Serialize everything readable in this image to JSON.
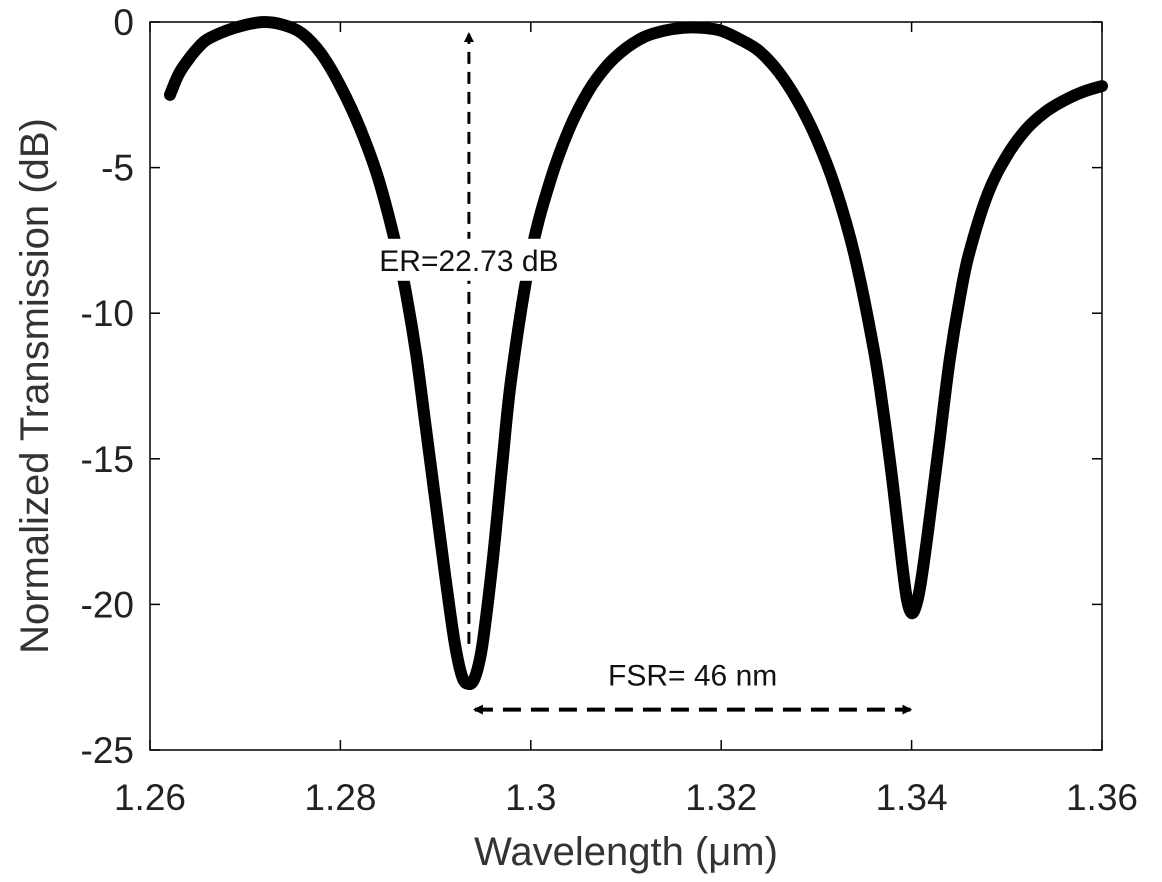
{
  "chart_data": {
    "type": "line",
    "xlabel": "Wavelength  (μm)",
    "ylabel": "Normalized Transmission (dB)",
    "xlim": [
      1.26,
      1.36
    ],
    "ylim": [
      -25,
      0
    ],
    "xticks": [
      "1.26",
      "1.28",
      "1.3",
      "1.32",
      "1.34",
      "1.36"
    ],
    "yticks": [
      "0",
      "-5",
      "-10",
      "-15",
      "-20",
      "-25"
    ],
    "grid": false,
    "series": [
      {
        "color": "#000000",
        "x": [
          1.2621,
          1.263,
          1.264,
          1.265,
          1.266,
          1.268,
          1.27,
          1.272,
          1.274,
          1.276,
          1.278,
          1.28,
          1.282,
          1.284,
          1.286,
          1.287,
          1.288,
          1.289,
          1.29,
          1.291,
          1.292,
          1.2928,
          1.2935,
          1.294,
          1.2945,
          1.295,
          1.296,
          1.297,
          1.298,
          1.3,
          1.302,
          1.304,
          1.306,
          1.308,
          1.31,
          1.312,
          1.314,
          1.316,
          1.318,
          1.32,
          1.322,
          1.324,
          1.326,
          1.328,
          1.33,
          1.332,
          1.334,
          1.336,
          1.337,
          1.338,
          1.339,
          1.3395,
          1.34,
          1.3405,
          1.341,
          1.342,
          1.343,
          1.344,
          1.345,
          1.346,
          1.348,
          1.35,
          1.352,
          1.354,
          1.356,
          1.358,
          1.36
        ],
        "y": [
          -2.5,
          -1.8,
          -1.3,
          -0.9,
          -0.6,
          -0.3,
          -0.1,
          0.0,
          -0.1,
          -0.4,
          -1.1,
          -2.2,
          -3.6,
          -5.4,
          -7.9,
          -9.5,
          -11.5,
          -14.0,
          -16.5,
          -19.0,
          -21.3,
          -22.5,
          -22.73,
          -22.6,
          -22.1,
          -21.2,
          -18.5,
          -15.2,
          -12.1,
          -8.0,
          -5.5,
          -3.7,
          -2.4,
          -1.5,
          -0.9,
          -0.5,
          -0.3,
          -0.2,
          -0.2,
          -0.3,
          -0.6,
          -1.0,
          -1.7,
          -2.7,
          -4.0,
          -5.7,
          -8.0,
          -11.2,
          -13.3,
          -15.8,
          -18.6,
          -19.8,
          -20.3,
          -20.0,
          -19.2,
          -16.8,
          -14.2,
          -11.6,
          -9.6,
          -8.0,
          -5.9,
          -4.6,
          -3.7,
          -3.1,
          -2.7,
          -2.4,
          -2.2
        ]
      }
    ],
    "annotations": [
      {
        "text": "ER=22.73 dB",
        "arrow": "vertical",
        "x": 1.2935,
        "from": -22.73,
        "to": 0
      },
      {
        "text": "FSR= 46 nm",
        "arrow": "horizontal",
        "y": -23.2,
        "from": 1.2935,
        "to": 1.3405
      }
    ]
  }
}
